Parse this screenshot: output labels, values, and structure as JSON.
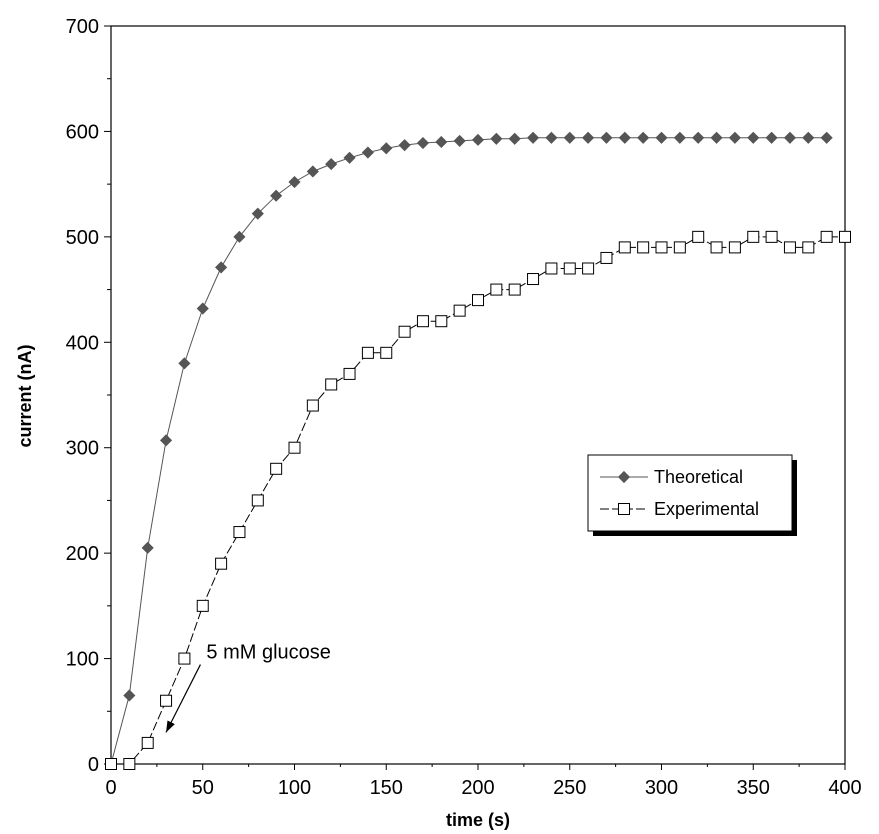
{
  "chart_data": {
    "type": "line",
    "xlabel": "time (s)",
    "ylabel": "current (nA)",
    "xlim": [
      0,
      400
    ],
    "ylim": [
      0,
      700
    ],
    "xticks": [
      0,
      50,
      100,
      150,
      200,
      250,
      300,
      350,
      400
    ],
    "yticks": [
      0,
      100,
      200,
      300,
      400,
      500,
      600,
      700
    ],
    "grid": false,
    "legend_position": "right",
    "series": [
      {
        "name": "Theoretical",
        "marker": "filled-diamond",
        "line_style": "solid",
        "color": "#555555",
        "x": [
          0,
          10,
          20,
          30,
          40,
          50,
          60,
          70,
          80,
          90,
          100,
          110,
          120,
          130,
          140,
          150,
          160,
          170,
          180,
          190,
          200,
          210,
          220,
          230,
          240,
          250,
          260,
          270,
          280,
          290,
          300,
          310,
          320,
          330,
          340,
          350,
          360,
          370,
          380,
          390
        ],
        "y": [
          0,
          65,
          205,
          307,
          380,
          432,
          471,
          500,
          522,
          539,
          552,
          562,
          569,
          575,
          580,
          584,
          587,
          589,
          590,
          591,
          592,
          593,
          593,
          594,
          594,
          594,
          594,
          594,
          594,
          594,
          594,
          594,
          594,
          594,
          594,
          594,
          594,
          594,
          594,
          594
        ]
      },
      {
        "name": "Experimental",
        "marker": "open-square",
        "line_style": "dashed",
        "color": "#000000",
        "x": [
          0,
          10,
          20,
          30,
          40,
          50,
          60,
          70,
          80,
          90,
          100,
          110,
          120,
          130,
          140,
          150,
          160,
          170,
          180,
          190,
          200,
          210,
          220,
          230,
          240,
          250,
          260,
          270,
          280,
          290,
          300,
          310,
          320,
          330,
          340,
          350,
          360,
          370,
          380,
          390,
          400
        ],
        "y": [
          0,
          0,
          20,
          60,
          100,
          150,
          190,
          220,
          250,
          280,
          300,
          340,
          360,
          370,
          390,
          390,
          410,
          420,
          420,
          430,
          440,
          450,
          450,
          460,
          470,
          470,
          470,
          480,
          490,
          490,
          490,
          490,
          500,
          490,
          490,
          500,
          500,
          490,
          490,
          500,
          500
        ]
      }
    ],
    "annotations": [
      {
        "text": "5 mM glucose",
        "arrow_to": [
          30,
          30
        ],
        "text_at": [
          52,
          100
        ]
      }
    ]
  }
}
